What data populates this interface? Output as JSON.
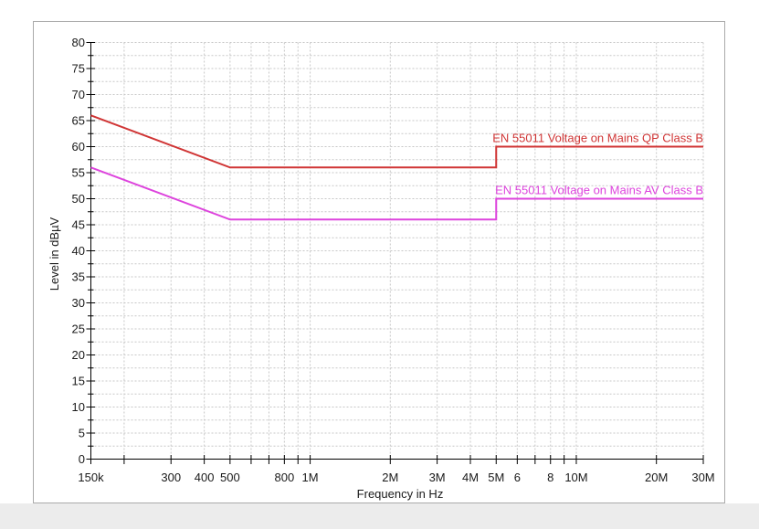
{
  "chart_data": {
    "type": "line",
    "title": "",
    "xlabel": "Frequency in Hz",
    "ylabel": "Level in dBµV",
    "x_scale": "log",
    "xlim": [
      150000,
      30000000
    ],
    "ylim": [
      0,
      80
    ],
    "y_label_step": 5,
    "y_grid_step": 2.5,
    "grid": "dashed",
    "grid_color": "#c7c7c7",
    "axis_color": "#000000",
    "panel_border_color": "#aaaaaa",
    "bottom_strip_color": "#ececec",
    "x_gridlines": [
      200000,
      300000,
      400000,
      500000,
      600000,
      700000,
      800000,
      900000,
      1000000,
      2000000,
      3000000,
      4000000,
      5000000,
      6000000,
      7000000,
      8000000,
      9000000,
      10000000,
      20000000,
      30000000
    ],
    "x_tick_labels": [
      {
        "f": 150000,
        "label": "150k"
      },
      {
        "f": 300000,
        "label": "300"
      },
      {
        "f": 400000,
        "label": "400"
      },
      {
        "f": 500000,
        "label": "500"
      },
      {
        "f": 800000,
        "label": "800"
      },
      {
        "f": 1000000,
        "label": "1M"
      },
      {
        "f": 2000000,
        "label": "2M"
      },
      {
        "f": 3000000,
        "label": "3M"
      },
      {
        "f": 4000000,
        "label": "4M"
      },
      {
        "f": 5000000,
        "label": "5M"
      },
      {
        "f": 6000000,
        "label": "6"
      },
      {
        "f": 8000000,
        "label": "8"
      },
      {
        "f": 10000000,
        "label": "10M"
      },
      {
        "f": 20000000,
        "label": "20M"
      },
      {
        "f": 30000000,
        "label": "30M"
      }
    ],
    "series": [
      {
        "name": "EN 55011 Voltage on Mains QP Class B",
        "color": "#d03535",
        "points": [
          [
            150000,
            66
          ],
          [
            500000,
            56
          ],
          [
            5000000,
            56
          ],
          [
            5000000,
            60
          ],
          [
            30000000,
            60
          ]
        ]
      },
      {
        "name": "EN 55011 Voltage on Mains AV Class B",
        "color": "#dd44dd",
        "points": [
          [
            150000,
            56
          ],
          [
            500000,
            46
          ],
          [
            5000000,
            46
          ],
          [
            5000000,
            50
          ],
          [
            30000000,
            50
          ]
        ]
      }
    ],
    "legend_position": "inline-above-line-right"
  }
}
